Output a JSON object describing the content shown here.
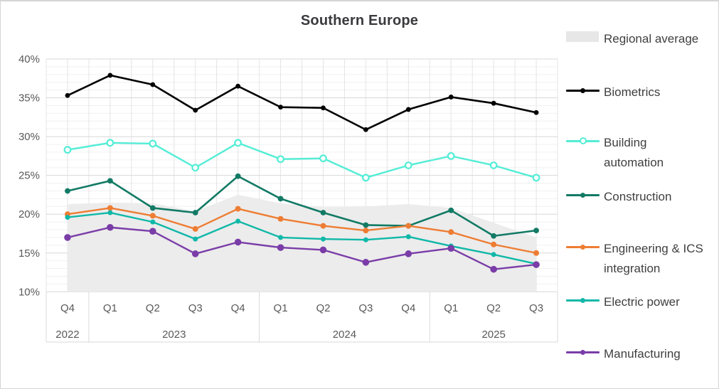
{
  "title": "Southern Europe",
  "chart_data": {
    "type": "line",
    "title": "Southern Europe",
    "categories": [
      "Q4",
      "Q1",
      "Q2",
      "Q3",
      "Q4",
      "Q1",
      "Q2",
      "Q3",
      "Q4",
      "Q1",
      "Q2",
      "Q3"
    ],
    "year_groups": [
      {
        "label": "2022",
        "count": 1
      },
      {
        "label": "2023",
        "count": 4
      },
      {
        "label": "2024",
        "count": 4
      },
      {
        "label": "2025",
        "count": 3
      }
    ],
    "ylim": [
      10,
      40
    ],
    "y_major_step": 5,
    "y_minor_step": 1,
    "y_tick_labels": [
      "40%",
      "35%",
      "30%",
      "25%",
      "20%",
      "15%",
      "10%"
    ],
    "y_suffix": "%",
    "grid": true,
    "legend_position": "right",
    "area": {
      "id": "regional-average",
      "name": "Regional average",
      "color": "#ececec",
      "values": [
        21.3,
        21.5,
        21.4,
        20.4,
        22.5,
        21.4,
        20.9,
        21.0,
        21.3,
        20.8,
        18.9,
        17.0
      ]
    },
    "series": [
      {
        "id": "biometrics",
        "name": "Biometrics",
        "color": "#000000",
        "width": 2.6,
        "marker": {
          "shape": "circle",
          "r": 3.4,
          "open": false
        },
        "values": [
          35.3,
          37.9,
          36.7,
          33.4,
          36.5,
          33.8,
          33.7,
          30.9,
          33.5,
          35.1,
          34.3,
          33.1
        ]
      },
      {
        "id": "building-automation",
        "name": "Building automation",
        "color": "#53edd6",
        "width": 2.4,
        "marker": {
          "shape": "circle",
          "r": 4.3,
          "open": true
        },
        "values": [
          28.3,
          29.2,
          29.1,
          26.0,
          29.2,
          27.1,
          27.2,
          24.7,
          26.3,
          27.5,
          26.3,
          24.7
        ]
      },
      {
        "id": "construction",
        "name": "Construction",
        "color": "#127a65",
        "width": 2.6,
        "marker": {
          "shape": "circle",
          "r": 3.9,
          "open": false
        },
        "values": [
          23.0,
          24.3,
          20.8,
          20.2,
          24.9,
          22.0,
          20.2,
          18.6,
          18.5,
          20.5,
          17.2,
          17.9
        ]
      },
      {
        "id": "engineering-ics-integration",
        "name": "Engineering & ICS integration",
        "color": "#ee7d33",
        "width": 2.4,
        "marker": {
          "shape": "circle",
          "r": 4.0,
          "open": false
        },
        "values": [
          20.0,
          20.8,
          19.8,
          18.1,
          20.7,
          19.4,
          18.5,
          17.9,
          18.5,
          17.7,
          16.1,
          15.0
        ]
      },
      {
        "id": "electric-power",
        "name": "Electric power",
        "color": "#10b8a8",
        "width": 2.4,
        "marker": {
          "shape": "circle",
          "r": 3.5,
          "open": false
        },
        "values": [
          19.6,
          20.2,
          19.0,
          16.8,
          19.1,
          17.0,
          16.8,
          16.7,
          17.1,
          15.9,
          14.8,
          13.6
        ]
      },
      {
        "id": "manufacturing",
        "name": "Manufacturing",
        "color": "#7a3da8",
        "width": 2.4,
        "marker": {
          "shape": "circle",
          "r": 4.8,
          "open": false
        },
        "values": [
          17.0,
          18.3,
          17.8,
          14.9,
          16.4,
          15.7,
          15.4,
          13.8,
          14.9,
          15.6,
          12.9,
          13.5
        ]
      }
    ]
  },
  "axis_text_color": "#595959",
  "legend_text_color": "#3f3f3f"
}
